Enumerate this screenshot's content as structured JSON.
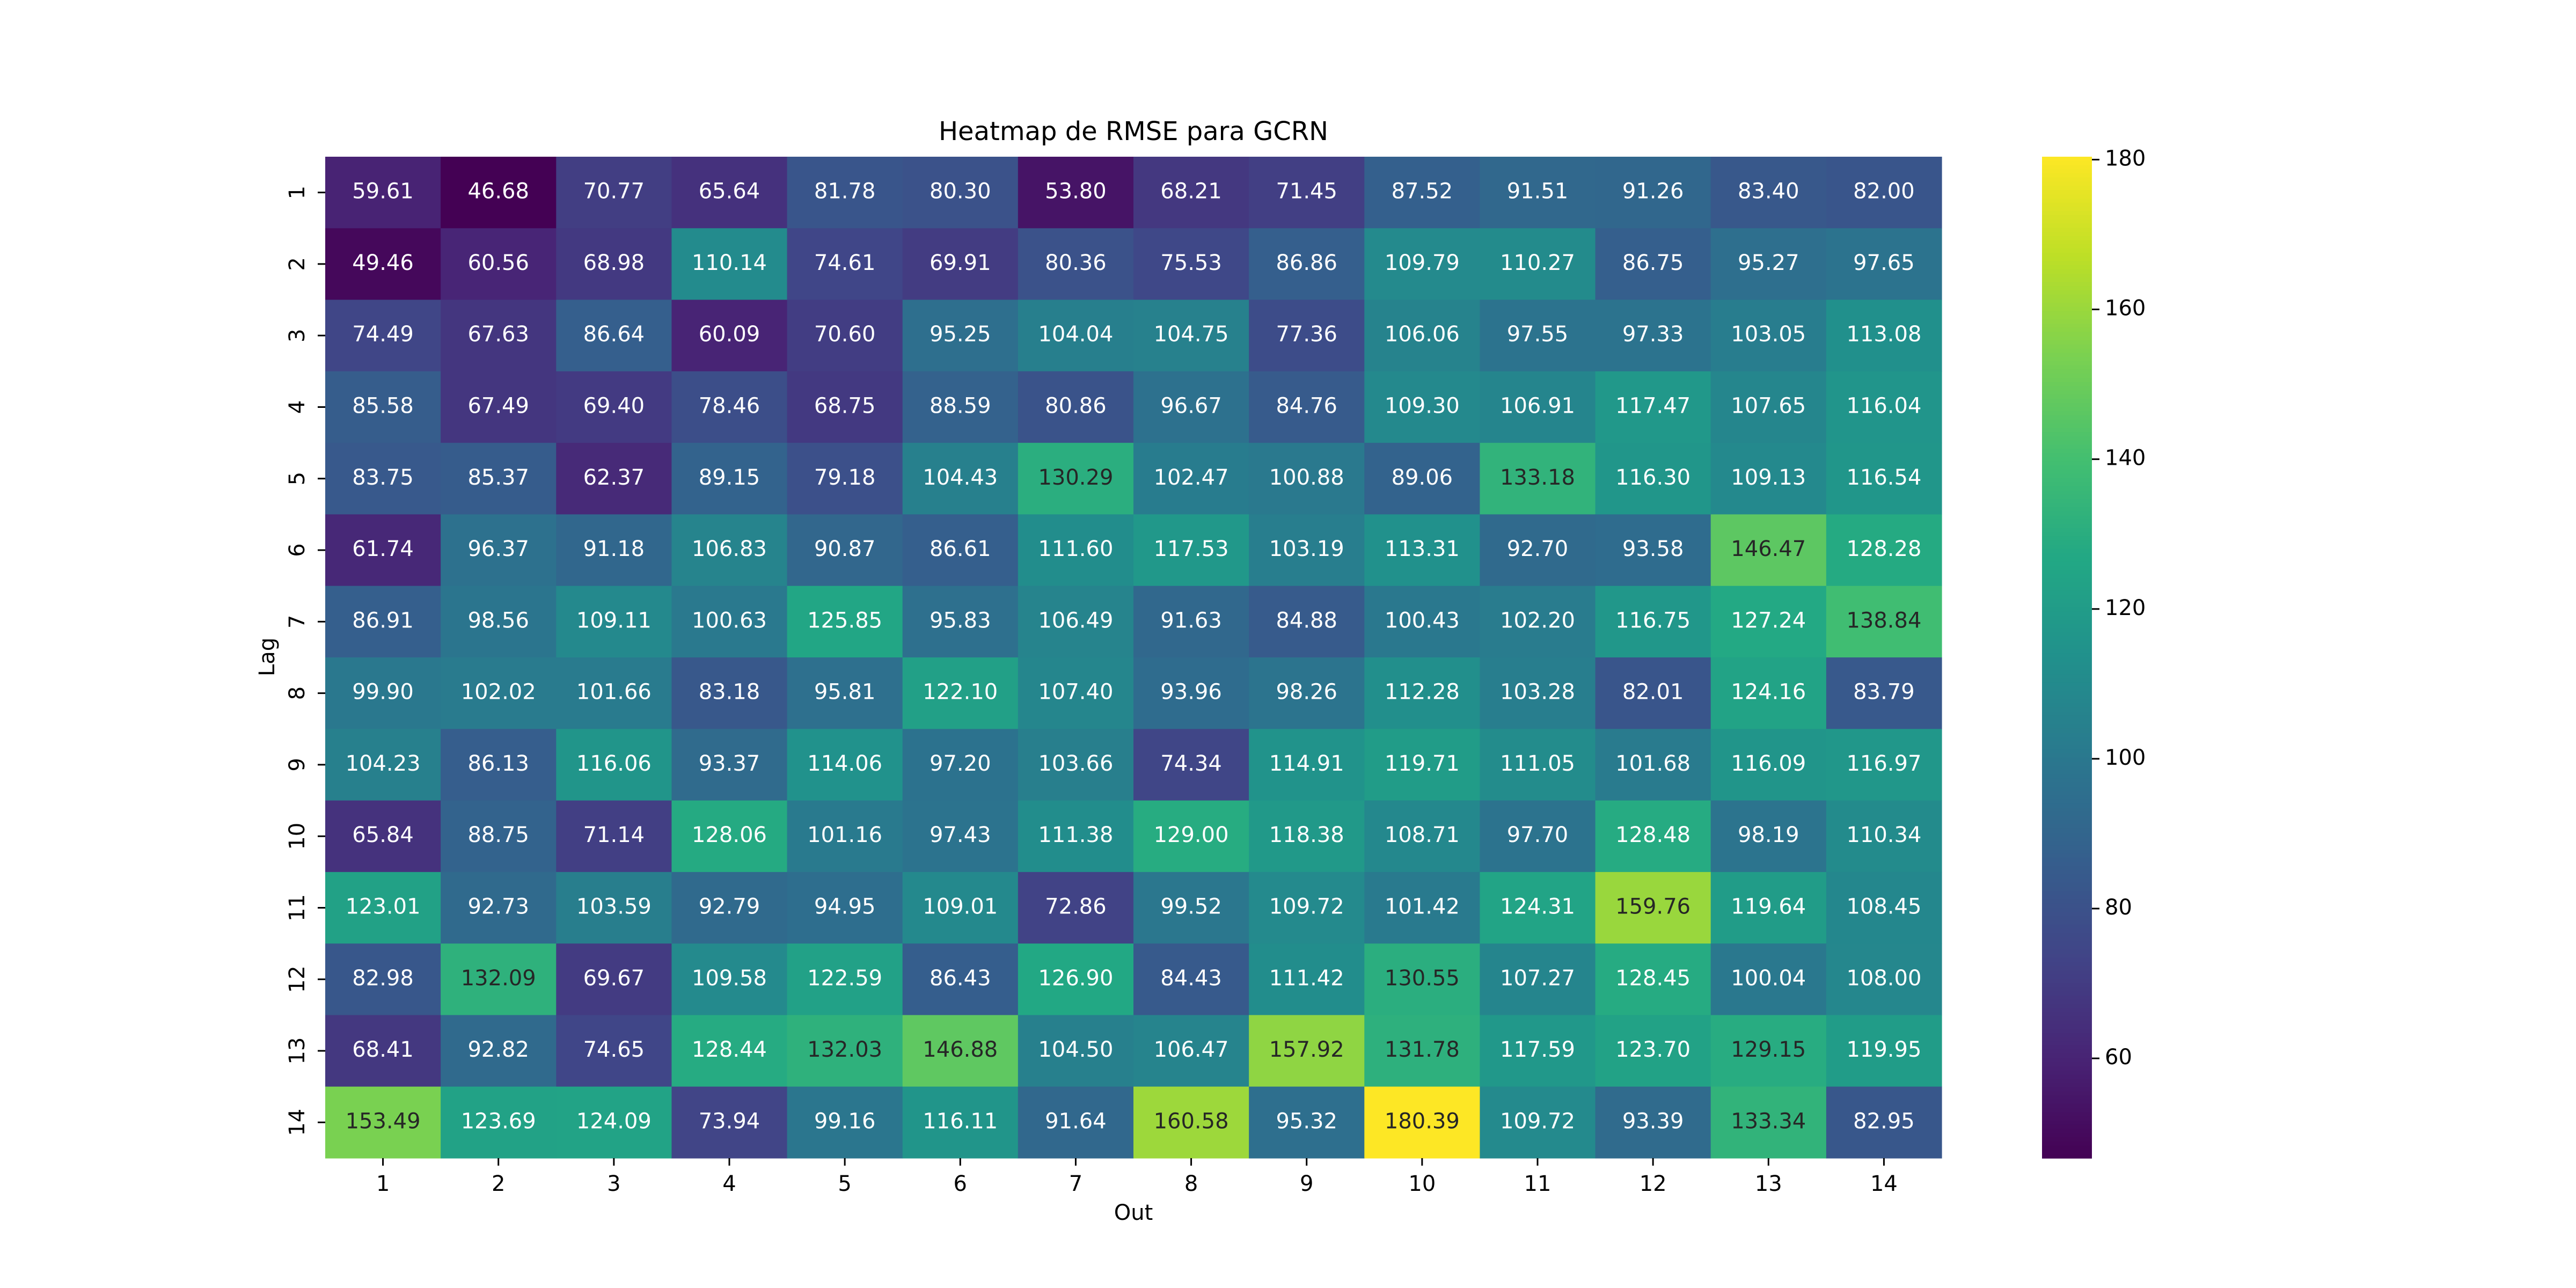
{
  "chart_data": {
    "type": "heatmap",
    "title": "Heatmap de RMSE para GCRN",
    "xlabel": "Out",
    "ylabel": "Lag",
    "x_categories": [
      "1",
      "2",
      "3",
      "4",
      "5",
      "6",
      "7",
      "8",
      "9",
      "10",
      "11",
      "12",
      "13",
      "14"
    ],
    "y_categories": [
      "1",
      "2",
      "3",
      "4",
      "5",
      "6",
      "7",
      "8",
      "9",
      "10",
      "11",
      "12",
      "13",
      "14"
    ],
    "values": [
      [
        "59.61",
        "46.68",
        "70.77",
        "65.64",
        "81.78",
        "80.30",
        "53.80",
        "68.21",
        "71.45",
        "87.52",
        "91.51",
        "91.26",
        "83.40",
        "82.00"
      ],
      [
        "49.46",
        "60.56",
        "68.98",
        "110.14",
        "74.61",
        "69.91",
        "80.36",
        "75.53",
        "86.86",
        "109.79",
        "110.27",
        "86.75",
        "95.27",
        "97.65"
      ],
      [
        "74.49",
        "67.63",
        "86.64",
        "60.09",
        "70.60",
        "95.25",
        "104.04",
        "104.75",
        "77.36",
        "106.06",
        "97.55",
        "97.33",
        "103.05",
        "113.08"
      ],
      [
        "85.58",
        "67.49",
        "69.40",
        "78.46",
        "68.75",
        "88.59",
        "80.86",
        "96.67",
        "84.76",
        "109.30",
        "106.91",
        "117.47",
        "107.65",
        "116.04"
      ],
      [
        "83.75",
        "85.37",
        "62.37",
        "89.15",
        "79.18",
        "104.43",
        "130.29",
        "102.47",
        "100.88",
        "89.06",
        "133.18",
        "116.30",
        "109.13",
        "116.54"
      ],
      [
        "61.74",
        "96.37",
        "91.18",
        "106.83",
        "90.87",
        "86.61",
        "111.60",
        "117.53",
        "103.19",
        "113.31",
        "92.70",
        "93.58",
        "146.47",
        "128.28"
      ],
      [
        "86.91",
        "98.56",
        "109.11",
        "100.63",
        "125.85",
        "95.83",
        "106.49",
        "91.63",
        "84.88",
        "100.43",
        "102.20",
        "116.75",
        "127.24",
        "138.84"
      ],
      [
        "99.90",
        "102.02",
        "101.66",
        "83.18",
        "95.81",
        "122.10",
        "107.40",
        "93.96",
        "98.26",
        "112.28",
        "103.28",
        "82.01",
        "124.16",
        "83.79"
      ],
      [
        "104.23",
        "86.13",
        "116.06",
        "93.37",
        "114.06",
        "97.20",
        "103.66",
        "74.34",
        "114.91",
        "119.71",
        "111.05",
        "101.68",
        "116.09",
        "116.97"
      ],
      [
        "65.84",
        "88.75",
        "71.14",
        "128.06",
        "101.16",
        "97.43",
        "111.38",
        "129.00",
        "118.38",
        "108.71",
        "97.70",
        "128.48",
        "98.19",
        "110.34"
      ],
      [
        "123.01",
        "92.73",
        "103.59",
        "92.79",
        "94.95",
        "109.01",
        "72.86",
        "99.52",
        "109.72",
        "101.42",
        "124.31",
        "159.76",
        "119.64",
        "108.45"
      ],
      [
        "82.98",
        "132.09",
        "69.67",
        "109.58",
        "122.59",
        "86.43",
        "126.90",
        "84.43",
        "111.42",
        "130.55",
        "107.27",
        "128.45",
        "100.04",
        "108.00"
      ],
      [
        "68.41",
        "92.82",
        "74.65",
        "128.44",
        "132.03",
        "146.88",
        "104.50",
        "106.47",
        "157.92",
        "131.78",
        "117.59",
        "123.70",
        "129.15",
        "119.95"
      ],
      [
        "153.49",
        "123.69",
        "124.09",
        "73.94",
        "99.16",
        "116.11",
        "91.64",
        "160.58",
        "95.32",
        "180.39",
        "109.72",
        "93.39",
        "133.34",
        "82.95"
      ]
    ],
    "colormap": "viridis",
    "colorbar": {
      "min": 46.68,
      "max": 180.39,
      "ticks": [
        "60",
        "80",
        "100",
        "120",
        "140",
        "160",
        "180"
      ]
    },
    "grid": false
  }
}
